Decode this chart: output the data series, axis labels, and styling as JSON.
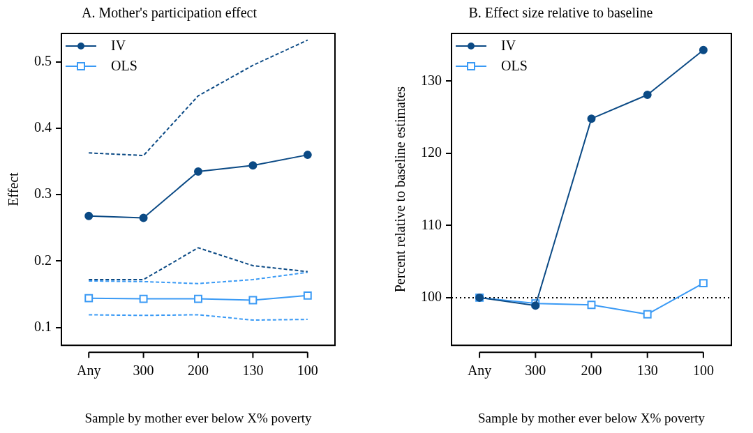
{
  "chart_data": [
    {
      "type": "line",
      "title": "A. Mother's participation effect",
      "xlabel": "Sample by mother ever below X% poverty",
      "ylabel": "Effect",
      "categories": [
        "Any",
        "300",
        "200",
        "130",
        "100"
      ],
      "series": [
        {
          "name": "IV",
          "color": "#0b4a85",
          "marker": "circle",
          "line_style": "solid",
          "values": [
            0.268,
            0.265,
            0.335,
            0.344,
            0.36
          ]
        },
        {
          "color": "#0b4a85",
          "marker": "none",
          "line_style": "dashed",
          "values": [
            0.363,
            0.359,
            0.449,
            0.495,
            0.533
          ]
        },
        {
          "color": "#0b4a85",
          "marker": "none",
          "line_style": "dashed",
          "values": [
            0.172,
            0.172,
            0.22,
            0.193,
            0.184
          ]
        },
        {
          "name": "OLS",
          "color": "#3a9af5",
          "marker": "square",
          "line_style": "solid",
          "values": [
            0.144,
            0.143,
            0.143,
            0.141,
            0.148
          ]
        },
        {
          "color": "#3a9af5",
          "marker": "none",
          "line_style": "dashed",
          "values": [
            0.17,
            0.169,
            0.166,
            0.172,
            0.183
          ]
        },
        {
          "color": "#3a9af5",
          "marker": "none",
          "line_style": "dashed",
          "values": [
            0.119,
            0.118,
            0.119,
            0.111,
            0.112
          ]
        }
      ],
      "ylim": [
        0.073,
        0.543
      ],
      "yticks": [
        0.1,
        0.2,
        0.3,
        0.4,
        0.5
      ],
      "grid": false,
      "legend": "top left"
    },
    {
      "type": "line",
      "title": "B. Effect size relative to baseline",
      "xlabel": "Sample by mother ever below X% poverty",
      "ylabel": "Percent relative to baseline estimates",
      "categories": [
        "Any",
        "300",
        "200",
        "130",
        "100"
      ],
      "series": [
        {
          "name": "IV",
          "color": "#0b4a85",
          "marker": "circle",
          "line_style": "solid",
          "values": [
            100,
            98.9,
            124.8,
            128.1,
            134.3
          ]
        },
        {
          "name": "OLS",
          "color": "#3a9af5",
          "marker": "square",
          "line_style": "solid",
          "values": [
            100,
            99.2,
            99.0,
            97.7,
            102.0
          ]
        }
      ],
      "ref_lines": [
        {
          "axis": "y",
          "value": 100,
          "color": "#000000",
          "line_style": "dotted"
        }
      ],
      "ylim": [
        93.4,
        136.6
      ],
      "yticks": [
        100,
        110,
        120,
        130
      ],
      "grid": false,
      "legend": "top left"
    }
  ]
}
